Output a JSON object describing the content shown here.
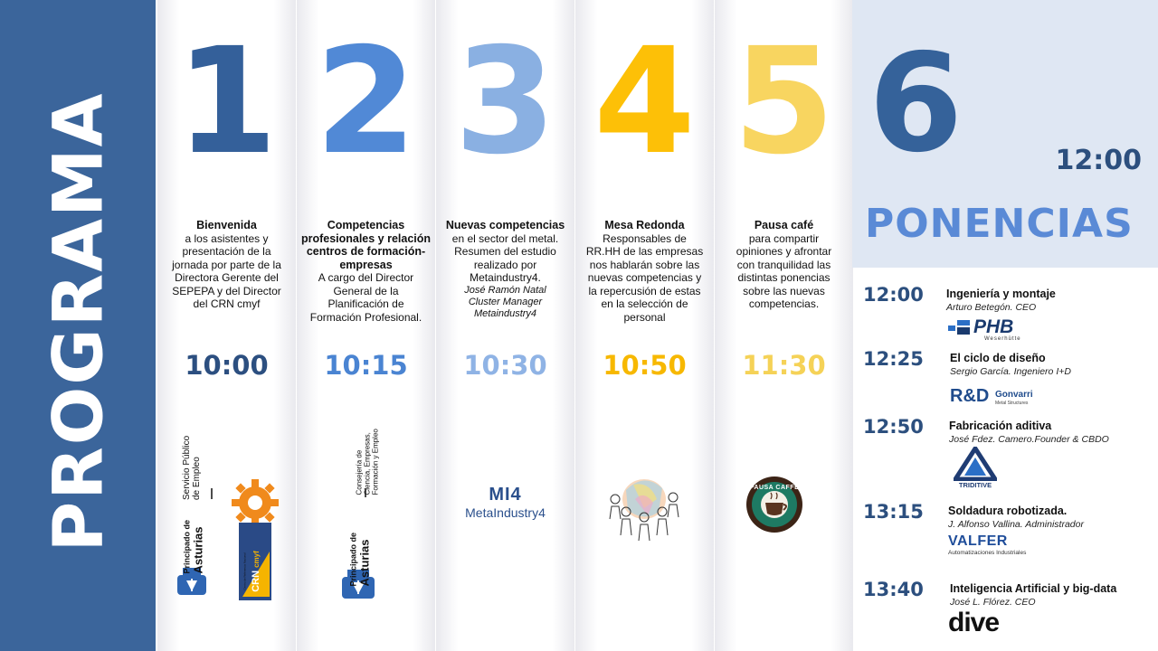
{
  "sidebar": {
    "title": "PROGRAMA"
  },
  "columns": [
    {
      "number": "1",
      "color": "#34609a",
      "time_color": "#2c4f80",
      "title": "Bienvenida",
      "body": [
        "a los asistentes y",
        "presentación de la",
        "jornada por parte de la",
        "Directora Gerente del",
        "SEPEPA y del Director",
        "del CRN cmyf"
      ],
      "italic": [],
      "time": "10:00"
    },
    {
      "number": "2",
      "color": "#5189d6",
      "time_color": "#4a84d2",
      "title": "Competencias profesionales y relación centros de formación-empresas",
      "body": [
        "A cargo del Director",
        "General de la",
        "Planificación de",
        "Formación Profesional."
      ],
      "italic": [],
      "time": "10:15"
    },
    {
      "number": "3",
      "color": "#8ab0e2",
      "time_color": "#8fb3e5",
      "title": "Nuevas competencias",
      "body": [
        "en el sector del metal.",
        "Resumen del estudio",
        "realizado por",
        "Metaindustry4."
      ],
      "italic": [
        "José Ramón Natal",
        "Cluster Manager",
        "Metaindustry4"
      ],
      "time": "10:30"
    },
    {
      "number": "4",
      "color": "#fdc007",
      "time_color": "#f7b800",
      "title": "Mesa Redonda",
      "body": [
        "Responsables de",
        "RR.HH de las empresas",
        "nos hablarán sobre las",
        "nuevas competencias y",
        "la repercusión de estas",
        "en la selección de",
        "personal"
      ],
      "italic": [],
      "time": "10:50"
    },
    {
      "number": "5",
      "color": "#f8d560",
      "time_color": "#f5d257",
      "title": "Pausa café",
      "body": [
        "para compartir",
        "opiniones y afrontar",
        "con tranquilidad las",
        "distintas ponencias",
        "sobre las nuevas",
        "competencias."
      ],
      "italic": [],
      "time": "11:30"
    }
  ],
  "logos": {
    "asturias_line1": "Principado de",
    "asturias_line2": "Asturias",
    "sepepa_line1": "Servicio Público",
    "sepepa_line2": "de Empleo",
    "consejeria_line1": "Consejería de",
    "consejeria_line2": "Ciencia, Empresas,",
    "consejeria_line3": "Formación y Empleo",
    "crn_text": "CRN",
    "crn_small": "cmyf",
    "crn_side": "Centro de Referencia Nacional",
    "mi4_mark": "MI4",
    "mi4_text": "MetaIndustry4",
    "pausa_text": "PAUSA CAFFÉ",
    "phb": "PHB",
    "phb_sub": "Weserhütte",
    "rd": "R&D",
    "gonvarri": "Gonvarri",
    "gonvarri_sub": "Metal Structures",
    "tri": "TRIDITIVE",
    "valfer": "VALFER",
    "valfer_sub": "Automatizaciones Industriales",
    "dive": "dive"
  },
  "ponencias": {
    "number": "6",
    "time": "12:00",
    "title": "PONENCIAS",
    "talks": [
      {
        "time": "12:00",
        "title": "Ingeniería y montaje",
        "speaker": "Arturo Betegón. CEO"
      },
      {
        "time": "12:25",
        "title": "El ciclo de diseño",
        "speaker": "Sergio García. Ingeniero I+D"
      },
      {
        "time": "12:50",
        "title": "Fabricación aditiva",
        "speaker": "José Fdez. Camero.Founder & CBDO"
      },
      {
        "time": "13:15",
        "title": "Soldadura robotizada.",
        "speaker": "J. Alfonso Vallina. Administrador"
      },
      {
        "time": "13:40",
        "title": "Inteligencia  Artificial y big-data",
        "speaker": "José L. Flórez. CEO"
      }
    ]
  }
}
